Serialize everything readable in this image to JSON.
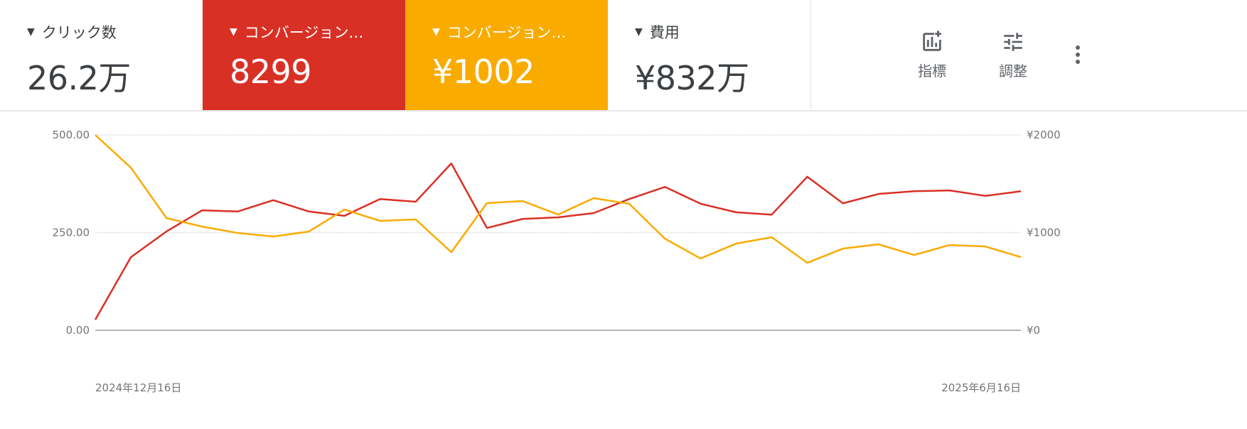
{
  "header": {
    "cards": [
      {
        "label": "クリック数",
        "value": "26.2万",
        "bg": "#ffffff",
        "fg": "#3c4043"
      },
      {
        "label": "コンバージョン…",
        "value": "8299",
        "bg": "#d93025",
        "fg": "#ffffff"
      },
      {
        "label": "コンバージョン…",
        "value": "¥1002",
        "bg": "#f9ab00",
        "fg": "#ffffff"
      },
      {
        "label": "費用",
        "value": "¥832万",
        "bg": "#ffffff",
        "fg": "#3c4043"
      }
    ],
    "tools": {
      "metrics_label": "指標",
      "adjust_label": "調整"
    }
  },
  "chart_data": {
    "type": "line",
    "x_start_label": "2024年12月16日",
    "x_end_label": "2025年6月16日",
    "left_axis": {
      "ticks": [
        "0.00",
        "250.00",
        "500.00"
      ],
      "range": [
        0,
        500
      ]
    },
    "right_axis": {
      "ticks": [
        "¥0",
        "¥1000",
        "¥2000"
      ],
      "range": [
        0,
        2000
      ]
    },
    "grid": true,
    "series": [
      {
        "axis": "left",
        "color": "#d93025",
        "values": [
          27,
          187,
          253,
          307,
          304,
          333,
          304,
          293,
          336,
          329,
          427,
          262,
          285,
          289,
          300,
          336,
          367,
          324,
          302,
          296,
          393,
          325,
          349,
          356,
          358,
          344,
          356
        ]
      },
      {
        "axis": "right",
        "color": "#f9ab00",
        "values": [
          2000,
          1665,
          1149,
          1062,
          996,
          960,
          1011,
          1236,
          1120,
          1135,
          800,
          1302,
          1324,
          1185,
          1353,
          1295,
          938,
          735,
          887,
          953,
          691,
          836,
          880,
          771,
          873,
          858,
          749
        ]
      }
    ]
  }
}
